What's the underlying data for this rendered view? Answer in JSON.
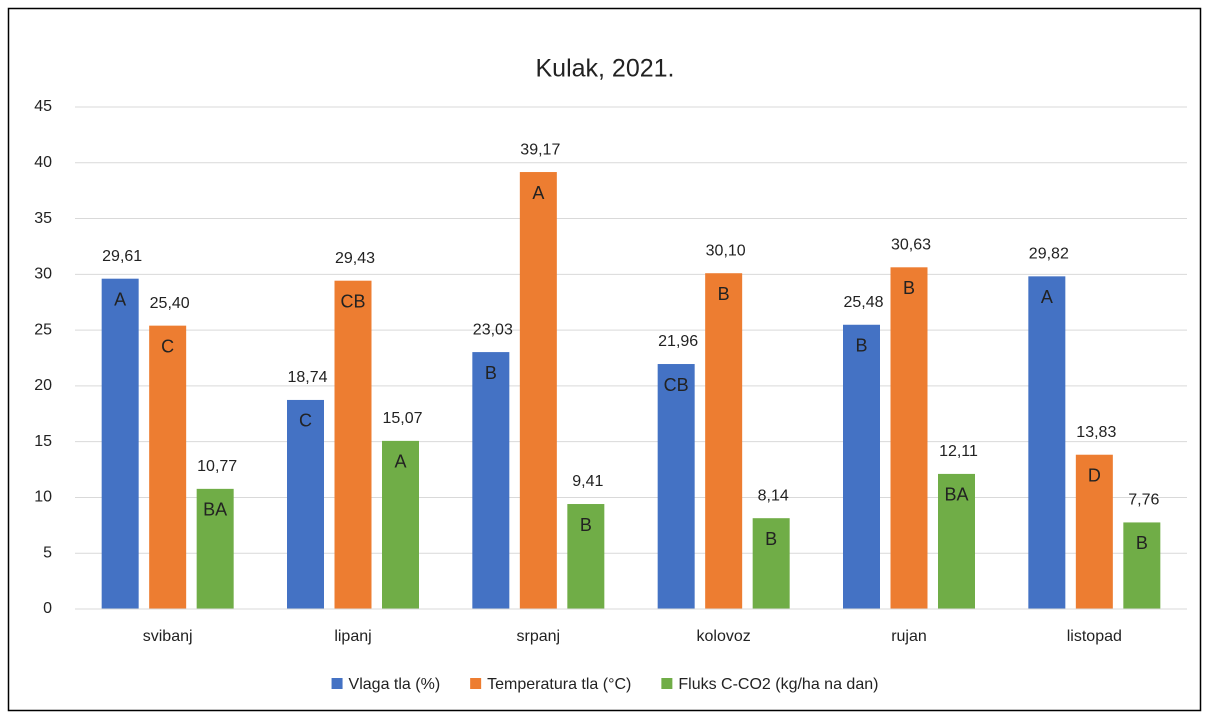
{
  "chart_data": {
    "type": "bar",
    "title": "Kulak, 2021.",
    "categories": [
      "svibanj",
      "lipanj",
      "srpanj",
      "kolovoz",
      "rujan",
      "listopad"
    ],
    "series": [
      {
        "name": "Vlaga tla (%)",
        "color": "#4472c4",
        "values": [
          29.61,
          18.74,
          23.03,
          21.96,
          25.48,
          29.82
        ],
        "value_labels": [
          "29,61",
          "18,74",
          "23,03",
          "21,96",
          "25,48",
          "29,82"
        ],
        "letters": [
          "A",
          "C",
          "B",
          "CB",
          "B",
          "A"
        ]
      },
      {
        "name": "Temperatura tla (°C)",
        "color": "#ed7d31",
        "values": [
          25.4,
          29.43,
          39.17,
          30.1,
          30.63,
          13.83
        ],
        "value_labels": [
          "25,40",
          "29,43",
          "39,17",
          "30,10",
          "30,63",
          "13,83"
        ],
        "letters": [
          "C",
          "CB",
          "A",
          "B",
          "B",
          "D"
        ]
      },
      {
        "name": "Fluks C-CO2 (kg/ha na dan)",
        "color": "#70ad47",
        "values": [
          10.77,
          15.07,
          9.41,
          8.14,
          12.11,
          7.76
        ],
        "value_labels": [
          "10,77",
          "15,07",
          "9,41",
          "8,14",
          "12,11",
          "7,76"
        ],
        "letters": [
          "BA",
          "A",
          "B",
          "B",
          "BA",
          "B"
        ]
      }
    ],
    "ylim": [
      0,
      45
    ],
    "yticks": [
      0,
      5,
      10,
      15,
      20,
      25,
      30,
      35,
      40,
      45
    ],
    "grid": true,
    "legend": "bottom"
  }
}
